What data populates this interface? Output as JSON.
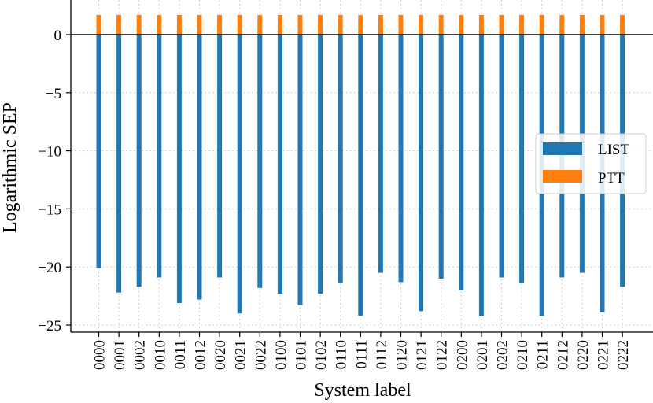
{
  "chart_data": {
    "type": "bar",
    "title": "",
    "xlabel": "System label",
    "ylabel": "Logarithmic SEP",
    "ylim": [
      -25.5,
      2.3
    ],
    "yticks": [
      0,
      -5,
      -10,
      -15,
      -20,
      -25
    ],
    "ytick_labels": [
      "0",
      "−5",
      "−10",
      "−15",
      "−20",
      "−25"
    ],
    "grid": true,
    "legend_position": "center-right",
    "categories": [
      "0000",
      "0001",
      "0002",
      "0010",
      "0011",
      "0012",
      "0020",
      "0021",
      "0022",
      "0100",
      "0101",
      "0102",
      "0110",
      "0111",
      "0112",
      "0120",
      "0121",
      "0122",
      "0200",
      "0201",
      "0202",
      "0210",
      "0211",
      "0212",
      "0220",
      "0221",
      "0222"
    ],
    "series": [
      {
        "name": "LIST",
        "color": "#1f77b4",
        "values": [
          -20.1,
          -22.2,
          -21.7,
          -20.9,
          -23.1,
          -22.8,
          -20.9,
          -24.0,
          -21.8,
          -22.3,
          -23.3,
          -22.3,
          -21.4,
          -24.2,
          -20.5,
          -21.3,
          -23.8,
          -21.0,
          -22.0,
          -24.2,
          -20.9,
          -21.4,
          -24.2,
          -20.9,
          -20.5,
          -23.9,
          -21.7
        ]
      },
      {
        "name": "PTT",
        "color": "#ff7f0e",
        "values": [
          1.7,
          1.7,
          1.7,
          1.7,
          1.7,
          1.7,
          1.7,
          1.7,
          1.7,
          1.7,
          1.7,
          1.7,
          1.7,
          1.7,
          1.7,
          1.7,
          1.7,
          1.7,
          1.7,
          1.7,
          1.7,
          1.7,
          1.7,
          1.7,
          1.7,
          1.7,
          1.7
        ]
      }
    ]
  }
}
